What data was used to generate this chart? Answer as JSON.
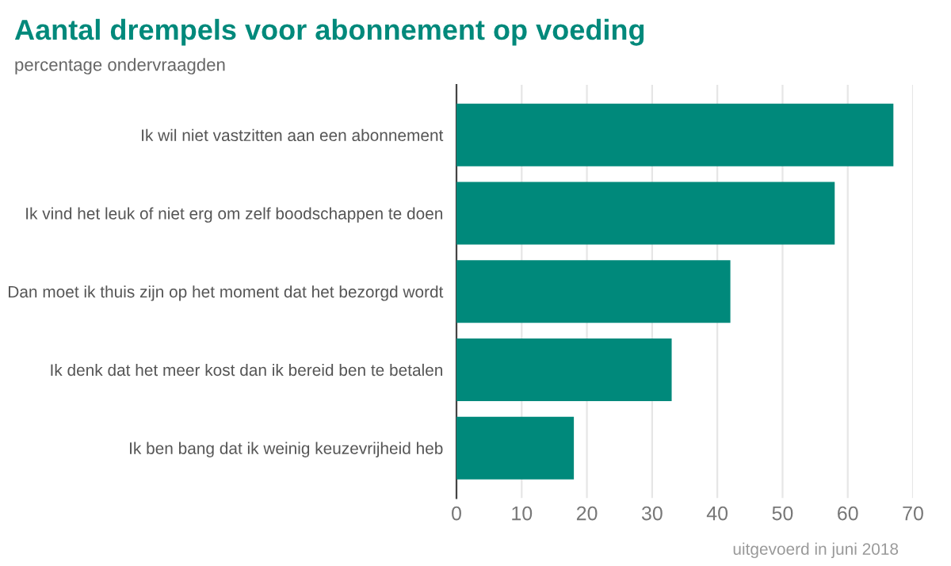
{
  "chart_data": {
    "type": "bar",
    "orientation": "horizontal",
    "title": "Aantal drempels voor abonnement op voeding",
    "subtitle": "percentage ondervraagden",
    "categories": [
      "Ik wil niet vastzitten aan een abonnement",
      "Ik vind het leuk of niet erg om zelf boodschappen te doen",
      "Dan moet ik thuis zijn op het moment dat het bezorgd wordt",
      "Ik denk dat het meer kost dan ik bereid ben te betalen",
      "Ik ben bang dat ik weinig keuzevrijheid heb"
    ],
    "values": [
      67,
      58,
      42,
      33,
      18
    ],
    "color": "#00897b",
    "xlim": [
      0,
      70
    ],
    "xticks": [
      0,
      10,
      20,
      30,
      40,
      50,
      60,
      70
    ],
    "grid": "x",
    "annotations": [
      "uitgevoerd in juni 2018"
    ]
  }
}
